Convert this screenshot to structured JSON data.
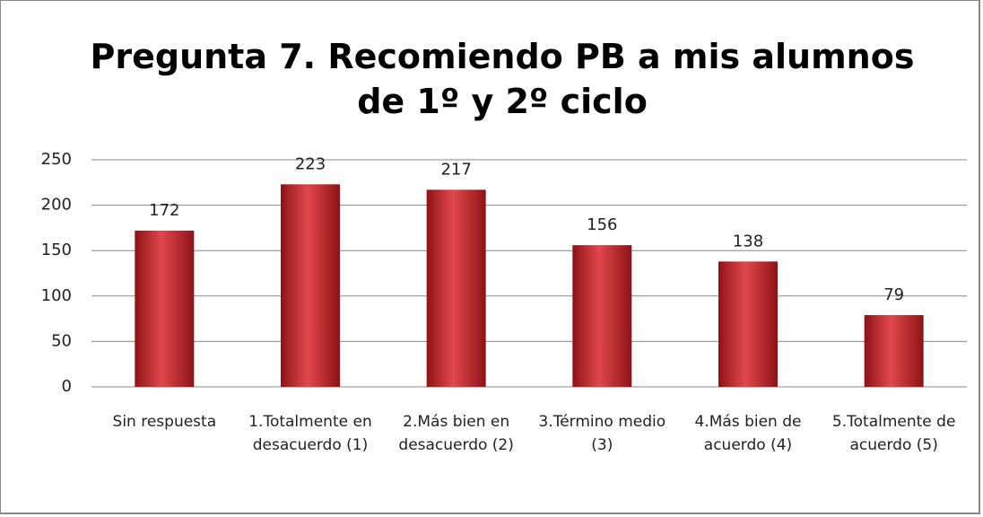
{
  "chart_data": {
    "type": "bar",
    "title": "Pregunta 7. Recomiendo PB a mis alumnos de 1º y 2º ciclo",
    "categories": [
      "Sin respuesta",
      "1.Totalmente en desacuerdo (1)",
      "2.Más bien en desacuerdo (2)",
      "3.Término medio (3)",
      "4.Más bien de acuerdo (4)",
      "5.Totalmente de acuerdo (5)"
    ],
    "values": [
      172,
      223,
      217,
      156,
      138,
      79
    ],
    "color": "#c0262b",
    "ylim": [
      0,
      250
    ],
    "yticks": [
      0,
      50,
      100,
      150,
      200,
      250
    ],
    "grid": true
  }
}
